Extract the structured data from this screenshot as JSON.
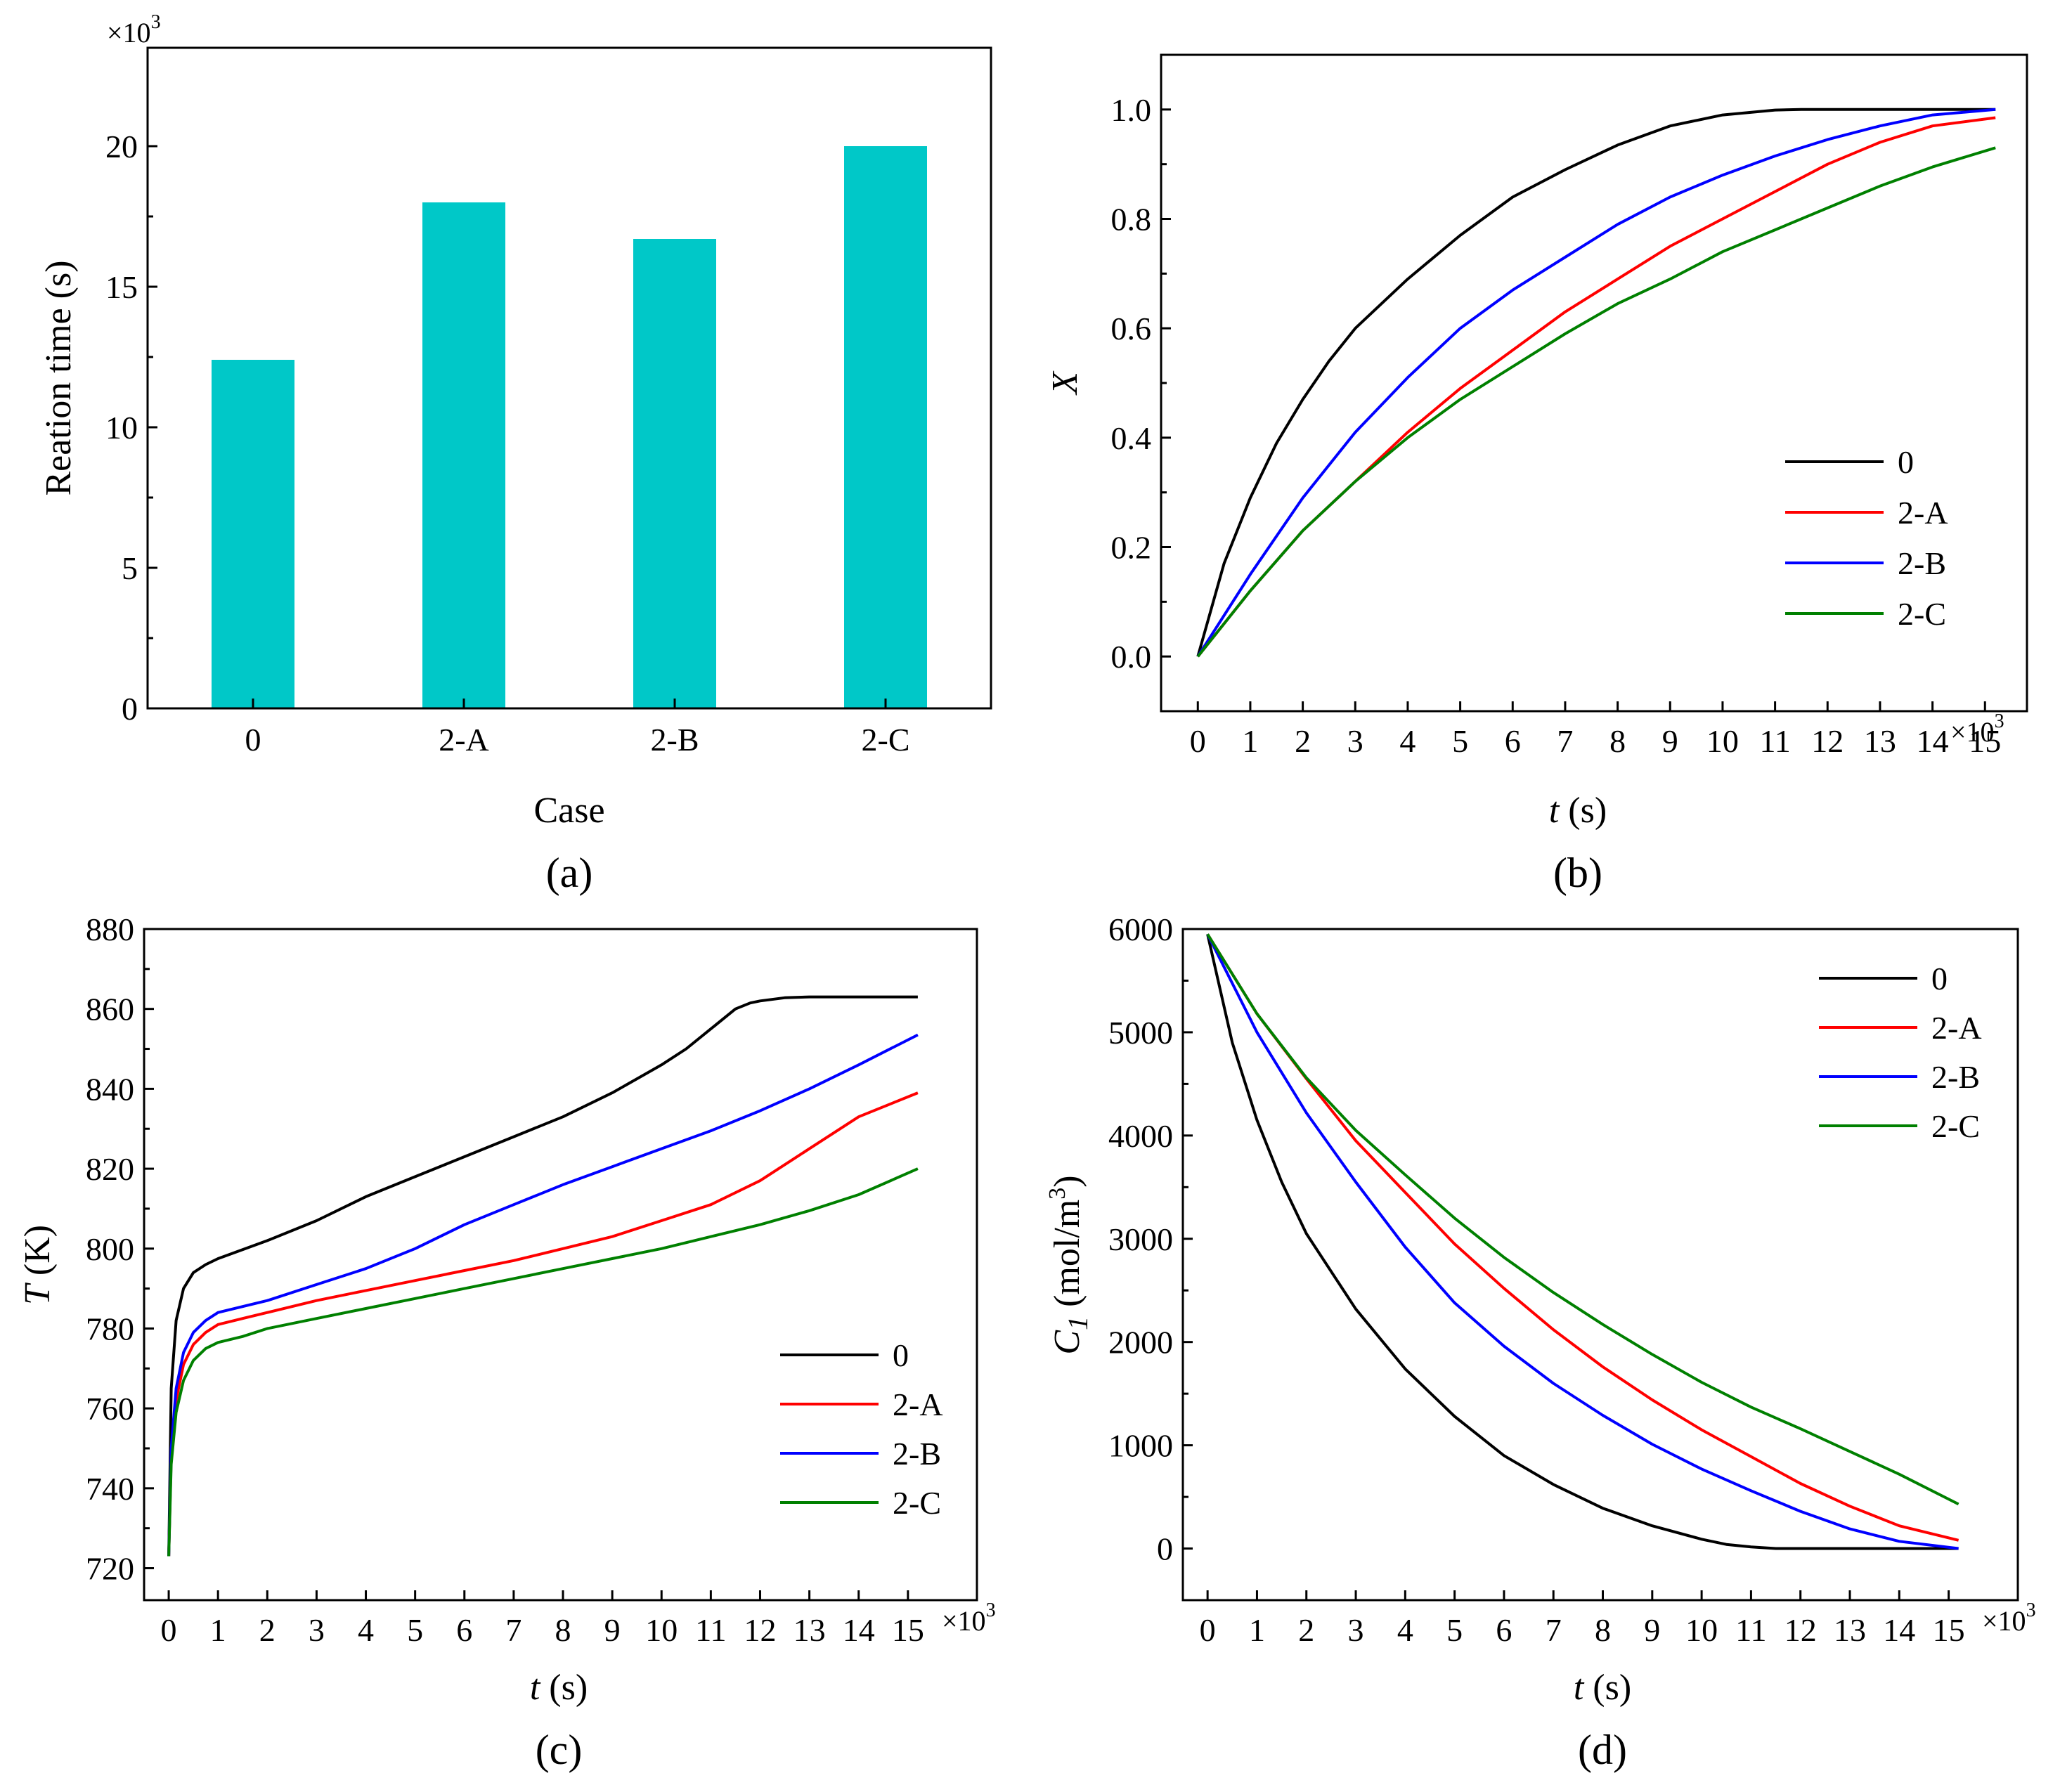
{
  "figure": {
    "panel_labels": [
      "(a)",
      "(b)",
      "(c)",
      "(d)"
    ],
    "legend_entries": [
      "0",
      "2-A",
      "2-B",
      "2-C"
    ],
    "multiplier_label": "×10",
    "multiplier_exponent": "3",
    "x_time_label": {
      "var": "t",
      "unit": " (s)"
    },
    "colors": {
      "0": "#000000",
      "2-A": "#ff0000",
      "2-B": "#0000ff",
      "2-C": "#008000",
      "bar": "#00c8c8"
    }
  },
  "chart_data": [
    {
      "id": "a",
      "type": "bar",
      "title": "",
      "xlabel": "Case",
      "ylabel": "Reation time (s)",
      "y_multiplier": "×10^3",
      "categories": [
        "0",
        "2-A",
        "2-B",
        "2-C"
      ],
      "values": [
        12.4,
        18.0,
        16.7,
        20.0
      ],
      "ylim": [
        0,
        23.5
      ],
      "yticks": [
        0,
        5,
        10,
        15,
        20
      ],
      "color": "#00c8c8"
    },
    {
      "id": "b",
      "type": "line",
      "xlabel": "t (s)",
      "ylabel": "X",
      "x_multiplier": "×10^3",
      "xlim": [
        -0.7,
        15.8
      ],
      "ylim": [
        -0.1,
        1.1
      ],
      "xticks": [
        0,
        1,
        2,
        3,
        4,
        5,
        6,
        7,
        8,
        9,
        10,
        11,
        12,
        13,
        14,
        15
      ],
      "yticks": [
        0.0,
        0.2,
        0.4,
        0.6,
        0.8,
        1.0
      ],
      "ytick_labels": [
        "0.0",
        "0.2",
        "0.4",
        "0.6",
        "0.8",
        "1.0"
      ],
      "legend": "center-right",
      "series": [
        {
          "name": "0",
          "color": "#000000",
          "x": [
            0,
            0.5,
            1,
            1.5,
            2,
            2.5,
            3,
            4,
            5,
            6,
            7,
            8,
            9,
            10,
            11,
            11.5,
            12,
            13,
            14,
            15.2
          ],
          "y": [
            0,
            0.17,
            0.29,
            0.39,
            0.47,
            0.54,
            0.6,
            0.69,
            0.77,
            0.84,
            0.89,
            0.935,
            0.97,
            0.99,
            0.999,
            1.0,
            1.0,
            1.0,
            1.0,
            1.0
          ]
        },
        {
          "name": "2-A",
          "color": "#ff0000",
          "x": [
            0,
            1,
            2,
            3,
            4,
            5,
            6,
            7,
            8,
            9,
            10,
            11,
            12,
            13,
            14,
            15.2
          ],
          "y": [
            0,
            0.12,
            0.23,
            0.32,
            0.41,
            0.49,
            0.56,
            0.63,
            0.69,
            0.75,
            0.8,
            0.85,
            0.9,
            0.94,
            0.97,
            0.985
          ]
        },
        {
          "name": "2-B",
          "color": "#0000ff",
          "x": [
            0,
            1,
            2,
            3,
            4,
            5,
            6,
            7,
            8,
            9,
            10,
            11,
            12,
            13,
            14,
            15.2
          ],
          "y": [
            0,
            0.15,
            0.29,
            0.41,
            0.51,
            0.6,
            0.67,
            0.73,
            0.79,
            0.84,
            0.88,
            0.915,
            0.945,
            0.97,
            0.99,
            1.0
          ]
        },
        {
          "name": "2-C",
          "color": "#008000",
          "x": [
            0,
            1,
            2,
            3,
            4,
            5,
            6,
            7,
            8,
            9,
            10,
            11,
            12,
            13,
            14,
            15.2
          ],
          "y": [
            0,
            0.12,
            0.23,
            0.32,
            0.4,
            0.47,
            0.53,
            0.59,
            0.645,
            0.69,
            0.74,
            0.78,
            0.82,
            0.86,
            0.895,
            0.93
          ]
        }
      ]
    },
    {
      "id": "c",
      "type": "line",
      "xlabel": "t (s)",
      "ylabel": "T (K)",
      "x_multiplier": "×10^3",
      "xlim": [
        -0.5,
        16.4
      ],
      "ylim": [
        712,
        880
      ],
      "xticks": [
        0,
        1,
        2,
        3,
        4,
        5,
        6,
        7,
        8,
        9,
        10,
        11,
        12,
        13,
        14,
        15
      ],
      "yticks": [
        720,
        740,
        760,
        780,
        800,
        820,
        840,
        860,
        880
      ],
      "legend": "lower-right",
      "series": [
        {
          "name": "0",
          "color": "#000000",
          "x": [
            0,
            0.05,
            0.15,
            0.3,
            0.5,
            0.75,
            1,
            2,
            3,
            4,
            5,
            6,
            7,
            8,
            9,
            10,
            10.5,
            11,
            11.5,
            11.8,
            12,
            12.5,
            13,
            14,
            15.2
          ],
          "y": [
            723,
            765,
            782,
            790,
            794,
            796,
            797.5,
            802,
            807,
            813,
            818,
            823,
            828,
            833,
            839,
            846,
            850,
            855,
            860,
            861.5,
            862,
            862.8,
            863,
            863,
            863
          ]
        },
        {
          "name": "2-A",
          "color": "#ff0000",
          "x": [
            0,
            0.05,
            0.15,
            0.3,
            0.5,
            0.75,
            1,
            1.5,
            2,
            3,
            4,
            5,
            6,
            7,
            8,
            9,
            10,
            11,
            12,
            13,
            14,
            15.2
          ],
          "y": [
            723,
            748,
            762,
            771,
            776,
            779,
            781,
            782.5,
            784,
            787,
            789.5,
            792,
            794.5,
            797,
            800,
            803,
            807,
            811,
            817,
            825,
            833,
            839
          ]
        },
        {
          "name": "2-B",
          "color": "#0000ff",
          "x": [
            0,
            0.05,
            0.15,
            0.3,
            0.5,
            0.75,
            1,
            1.5,
            2,
            3,
            4,
            5,
            6,
            7,
            8,
            9,
            10,
            11,
            12,
            13,
            14,
            15.2
          ],
          "y": [
            723,
            750,
            765,
            774,
            779,
            782,
            784,
            785.5,
            787,
            791,
            795,
            800,
            806,
            811,
            816,
            820.5,
            825,
            829.5,
            834.5,
            840,
            846,
            853.5
          ]
        },
        {
          "name": "2-C",
          "color": "#008000",
          "x": [
            0,
            0.05,
            0.15,
            0.3,
            0.5,
            0.75,
            1,
            1.5,
            2,
            3,
            4,
            5,
            6,
            7,
            8,
            9,
            10,
            11,
            12,
            13,
            14,
            15.2
          ],
          "y": [
            723,
            746,
            759,
            767,
            772,
            775,
            776.5,
            778,
            780,
            782.5,
            785,
            787.5,
            790,
            792.5,
            795,
            797.5,
            800,
            803,
            806,
            809.5,
            813.5,
            820
          ]
        }
      ]
    },
    {
      "id": "d",
      "type": "line",
      "xlabel": "t (s)",
      "ylabel": "C1 (mol/m3)",
      "x_multiplier": "×10^3",
      "xlim": [
        -0.5,
        16.4
      ],
      "ylim": [
        -500,
        6000
      ],
      "xticks": [
        0,
        1,
        2,
        3,
        4,
        5,
        6,
        7,
        8,
        9,
        10,
        11,
        12,
        13,
        14,
        15
      ],
      "yticks": [
        0,
        1000,
        2000,
        3000,
        4000,
        5000,
        6000
      ],
      "legend": "top-right",
      "series": [
        {
          "name": "0",
          "color": "#000000",
          "x": [
            0,
            0.5,
            1,
            1.5,
            2,
            3,
            4,
            5,
            6,
            7,
            8,
            9,
            10,
            10.5,
            11,
            11.5,
            12,
            13,
            14,
            15.2
          ],
          "y": [
            5950,
            4900,
            4150,
            3550,
            3050,
            2320,
            1740,
            1280,
            900,
            620,
            390,
            220,
            90,
            40,
            15,
            0,
            0,
            0,
            0,
            0
          ]
        },
        {
          "name": "2-A",
          "color": "#ff0000",
          "x": [
            0,
            1,
            2,
            3,
            4,
            5,
            6,
            7,
            8,
            9,
            10,
            11,
            12,
            13,
            14,
            15.2
          ],
          "y": [
            5950,
            5180,
            4550,
            3950,
            3450,
            2950,
            2520,
            2120,
            1760,
            1440,
            1150,
            890,
            630,
            410,
            220,
            80
          ]
        },
        {
          "name": "2-B",
          "color": "#0000ff",
          "x": [
            0,
            1,
            2,
            3,
            4,
            5,
            6,
            7,
            8,
            9,
            10,
            11,
            12,
            13,
            14,
            15.2
          ],
          "y": [
            5950,
            5000,
            4220,
            3550,
            2920,
            2380,
            1960,
            1600,
            1290,
            1010,
            770,
            560,
            360,
            190,
            70,
            0
          ]
        },
        {
          "name": "2-C",
          "color": "#008000",
          "x": [
            0,
            1,
            2,
            3,
            4,
            5,
            6,
            7,
            8,
            9,
            10,
            11,
            12,
            13,
            14,
            15.2
          ],
          "y": [
            5950,
            5180,
            4560,
            4050,
            3620,
            3200,
            2820,
            2480,
            2170,
            1880,
            1610,
            1370,
            1160,
            940,
            720,
            430
          ]
        }
      ]
    }
  ]
}
